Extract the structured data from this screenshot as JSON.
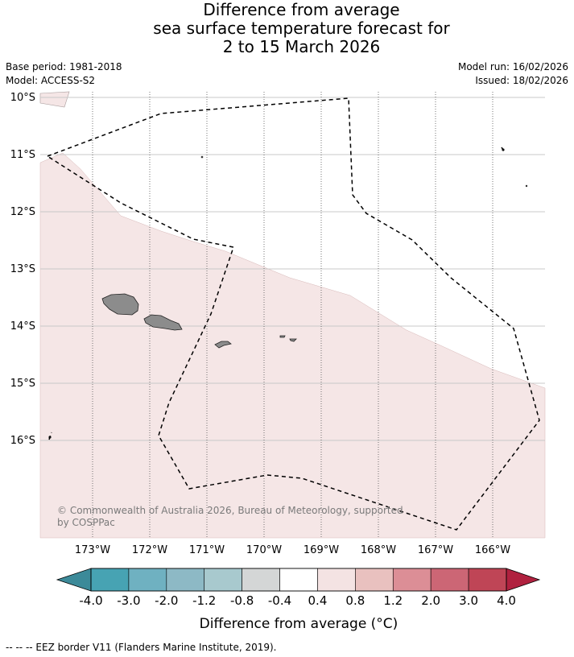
{
  "title": {
    "line1": "Difference from average",
    "line2": "sea surface temperature forecast for",
    "line3": "2 to 15 March 2026"
  },
  "meta": {
    "base_period": "Base period: 1981-2018",
    "model": "Model: ACCESS-S2",
    "model_run": "Model run: 16/02/2026",
    "issued": "Issued: 18/02/2026"
  },
  "map": {
    "lat_labels": [
      "10°S",
      "11°S",
      "12°S",
      "13°S",
      "14°S",
      "15°S",
      "16°S"
    ],
    "lon_labels": [
      "173°W",
      "172°W",
      "171°W",
      "170°W",
      "169°W",
      "168°W",
      "167°W",
      "166°W"
    ],
    "credit_line1": "© Commonwealth of Australia 2026, Bureau of Meteorology, supported",
    "credit_line2": "by COSPPac",
    "anomaly_fill_color": "#f5e6e6",
    "land_color": "#8c8c8c",
    "eez_border_style": "dashed"
  },
  "colorbar": {
    "title": "Difference from average (°C)",
    "ticks": [
      "-4.0",
      "-3.0",
      "-2.0",
      "-1.2",
      "-0.8",
      "-0.4",
      "0.4",
      "0.8",
      "1.2",
      "2.0",
      "3.0",
      "4.0"
    ],
    "colors": [
      "#3c8a99",
      "#47a3b3",
      "#6fb1c1",
      "#8db9c5",
      "#a8c9ce",
      "#d4d6d6",
      "#ffffff",
      "#f4e3e3",
      "#e9c1bf",
      "#dc8e96",
      "#cc6675",
      "#bf4556",
      "#b0213f"
    ]
  },
  "footnote": "-- -- -- EEZ border V11 (Flanders Marine Institute, 2019)."
}
